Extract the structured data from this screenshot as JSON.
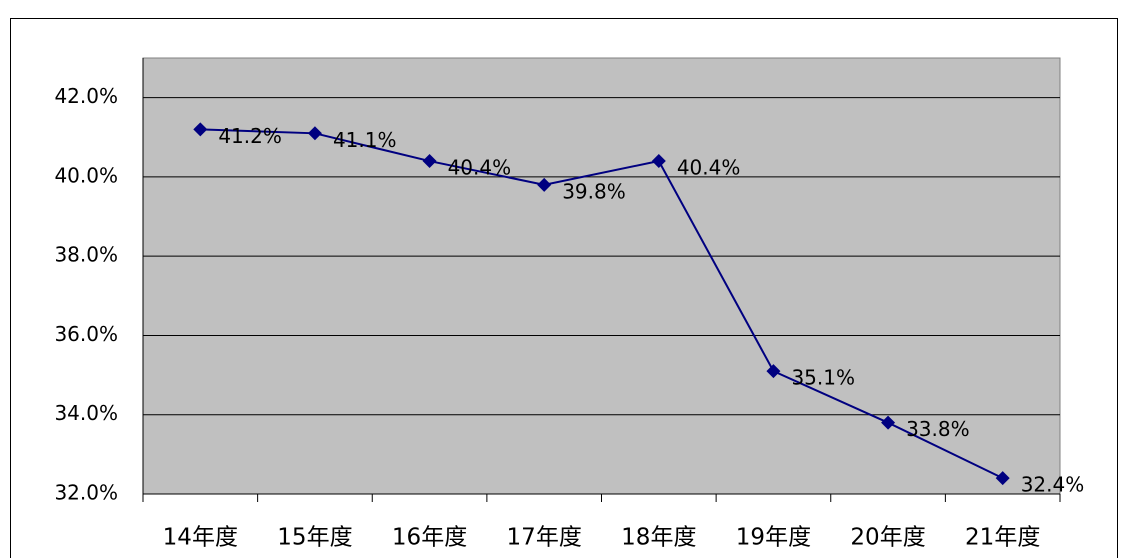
{
  "chart_data": {
    "type": "line",
    "categories": [
      "14年度",
      "15年度",
      "16年度",
      "17年度",
      "18年度",
      "19年度",
      "20年度",
      "21年度"
    ],
    "series": [
      {
        "color": "#000080",
        "values": [
          41.2,
          41.1,
          40.4,
          39.8,
          40.4,
          35.1,
          33.8,
          32.4
        ],
        "value_labels": [
          "41.2%",
          "41.1%",
          "40.4%",
          "39.8%",
          "40.4%",
          "35.1%",
          "33.8%",
          "32.4%"
        ]
      }
    ],
    "ylim": [
      32,
      43
    ],
    "yticks": [
      {
        "value": 32,
        "label": "32.0%"
      },
      {
        "value": 34,
        "label": "34.0%"
      },
      {
        "value": 36,
        "label": "36.0%"
      },
      {
        "value": 38,
        "label": "38.0%"
      },
      {
        "value": 40,
        "label": "40.0%"
      },
      {
        "value": 42,
        "label": "42.0%"
      }
    ],
    "grid": true
  }
}
